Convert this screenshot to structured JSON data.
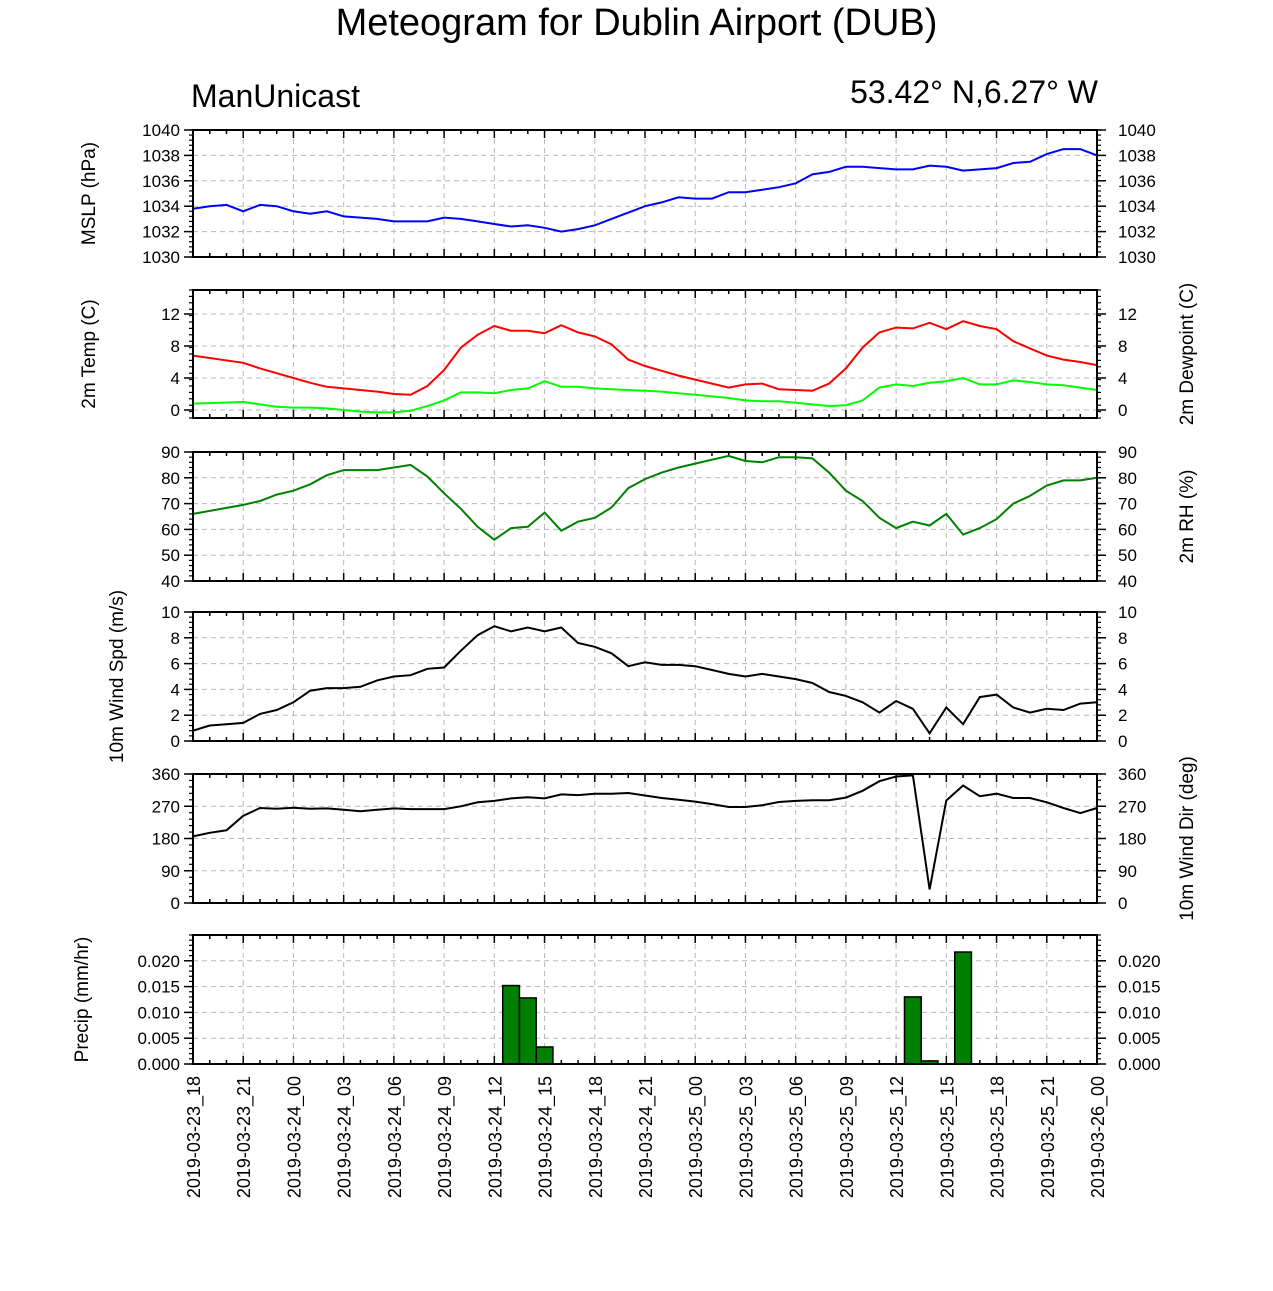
{
  "title": "Meteogram for Dublin Airport (DUB)",
  "subtitle_left": "ManUnicast",
  "subtitle_right": "53.42° N,6.27° W",
  "x_ticks": [
    "2019-03-23_18",
    "2019-03-23_21",
    "2019-03-24_00",
    "2019-03-24_03",
    "2019-03-24_06",
    "2019-03-24_09",
    "2019-03-24_12",
    "2019-03-24_15",
    "2019-03-24_18",
    "2019-03-24_21",
    "2019-03-25_00",
    "2019-03-25_03",
    "2019-03-25_06",
    "2019-03-25_09",
    "2019-03-25_12",
    "2019-03-25_15",
    "2019-03-25_18",
    "2019-03-25_21",
    "2019-03-26_00"
  ],
  "chart_data": [
    {
      "type": "line",
      "ylabel": "MSLP (hPa)",
      "ylabel_right": "",
      "ylim": [
        1030,
        1040
      ],
      "yticks": [
        1030,
        1032,
        1034,
        1036,
        1038,
        1040
      ],
      "ytick_labels": [
        "1030",
        "1032",
        "1034",
        "1036",
        "1038",
        "1040"
      ],
      "right_tick_labels": true,
      "x_hours": [
        0,
        1,
        2,
        3,
        4,
        5,
        6,
        7,
        8,
        9,
        10,
        11,
        12,
        13,
        14,
        15,
        16,
        17,
        18,
        19,
        20,
        21,
        22,
        23,
        24,
        25,
        26,
        27,
        28,
        29,
        30,
        31,
        32,
        33,
        34,
        35,
        36,
        37,
        38,
        39,
        40,
        41,
        42,
        43,
        44,
        45,
        46,
        47,
        48,
        49,
        50,
        51,
        52,
        53,
        54
      ],
      "series": [
        {
          "color": "#0000ff",
          "values": [
            1033.8,
            1034.0,
            1034.1,
            1033.6,
            1034.1,
            1034.0,
            1033.6,
            1033.4,
            1033.6,
            1033.2,
            1033.1,
            1033.0,
            1032.8,
            1032.8,
            1032.8,
            1033.1,
            1033.0,
            1032.8,
            1032.6,
            1032.4,
            1032.5,
            1032.3,
            1032.0,
            1032.2,
            1032.5,
            1033.0,
            1033.5,
            1034.0,
            1034.3,
            1034.7,
            1034.6,
            1034.6,
            1035.1,
            1035.1,
            1035.3,
            1035.5,
            1035.8,
            1036.5,
            1036.7,
            1037.1,
            1037.1,
            1037.0,
            1036.9,
            1036.9,
            1037.2,
            1037.1,
            1036.8,
            1036.9,
            1037.0,
            1037.4,
            1037.5,
            1038.1,
            1038.5,
            1038.5,
            1038.0
          ]
        }
      ]
    },
    {
      "type": "line",
      "ylabel": "2m Temp (C)",
      "ylabel_right": "2m Dewpoint (C)",
      "ylim": [
        -1,
        15
      ],
      "yticks": [
        0,
        4,
        8,
        12
      ],
      "ytick_labels": [
        "0",
        "4",
        "8",
        "12"
      ],
      "right_tick_labels": true,
      "x_hours": [
        0,
        3,
        4,
        5,
        6,
        7,
        8,
        9,
        10,
        11,
        12,
        13,
        14,
        15,
        16,
        17,
        18,
        19,
        20,
        21,
        22,
        23,
        24,
        25,
        26,
        27,
        28,
        29,
        30,
        31,
        32,
        33,
        34,
        35,
        36,
        37,
        38,
        39,
        40,
        41,
        42,
        43,
        44,
        45,
        46,
        47,
        48,
        49,
        50,
        51,
        52,
        53,
        54
      ],
      "series": [
        {
          "color": "#ff0000",
          "values": [
            6.8,
            5.9,
            5.2,
            4.6,
            4.0,
            3.4,
            2.9,
            2.7,
            2.5,
            2.3,
            2.0,
            1.9,
            3.0,
            5.0,
            7.8,
            9.4,
            10.5,
            9.9,
            9.9,
            9.6,
            10.6,
            9.7,
            9.2,
            8.2,
            6.3,
            5.5,
            4.9,
            4.3,
            3.8,
            3.3,
            2.8,
            3.2,
            3.3,
            2.6,
            2.5,
            2.4,
            3.3,
            5.2,
            7.8,
            9.7,
            10.3,
            10.2,
            10.9,
            10.1,
            11.1,
            10.5,
            10.1,
            8.6,
            7.7,
            6.8,
            6.3,
            6.0,
            5.6
          ]
        },
        {
          "color": "#00ff00",
          "values": [
            0.8,
            1.0,
            0.7,
            0.4,
            0.3,
            0.3,
            0.2,
            0.0,
            -0.2,
            -0.3,
            -0.3,
            -0.1,
            0.5,
            1.2,
            2.2,
            2.2,
            2.1,
            2.5,
            2.7,
            3.6,
            2.9,
            2.9,
            2.7,
            2.6,
            2.5,
            2.4,
            2.3,
            2.1,
            1.9,
            1.7,
            1.5,
            1.2,
            1.1,
            1.1,
            0.9,
            0.7,
            0.5,
            0.6,
            1.2,
            2.8,
            3.2,
            3.0,
            3.4,
            3.6,
            4.0,
            3.2,
            3.2,
            3.7,
            3.5,
            3.2,
            3.1,
            2.8,
            2.5
          ]
        }
      ]
    },
    {
      "type": "line",
      "ylabel": "",
      "ylabel_right": "2m RH (%)",
      "ylim": [
        40,
        90
      ],
      "yticks": [
        40,
        50,
        60,
        70,
        80,
        90
      ],
      "ytick_labels": [
        "40",
        "50",
        "60",
        "70",
        "80",
        "90"
      ],
      "right_tick_labels": true,
      "x_hours": [
        0,
        3,
        4,
        5,
        6,
        7,
        8,
        9,
        10,
        11,
        12,
        13,
        14,
        15,
        16,
        17,
        18,
        19,
        20,
        21,
        22,
        23,
        24,
        25,
        26,
        27,
        28,
        29,
        30,
        31,
        32,
        33,
        34,
        35,
        36,
        37,
        38,
        39,
        40,
        41,
        42,
        43,
        44,
        45,
        46,
        47,
        48,
        49,
        50,
        51,
        52,
        53,
        54
      ],
      "series": [
        {
          "color": "#008000",
          "values": [
            66.0,
            69.5,
            71.0,
            73.5,
            75.0,
            77.5,
            81.0,
            83.0,
            83.0,
            83.0,
            84.0,
            85.0,
            80.5,
            74.0,
            68.0,
            61.0,
            56.0,
            60.5,
            61.0,
            66.5,
            59.5,
            63.0,
            64.5,
            68.5,
            76.0,
            79.5,
            82.0,
            84.0,
            85.5,
            87.0,
            88.5,
            86.5,
            86.0,
            88.0,
            88.0,
            87.5,
            82.0,
            75.0,
            71.0,
            64.5,
            60.5,
            63.0,
            61.5,
            66.0,
            58.0,
            60.5,
            64.0,
            70.0,
            73.0,
            77.0,
            79.0,
            79.0,
            80.0
          ]
        }
      ]
    },
    {
      "type": "line",
      "ylabel": "10m Wind Spd (m/s)",
      "ylabel_right": "",
      "ylim": [
        0,
        10
      ],
      "yticks": [
        0,
        2,
        4,
        6,
        8,
        10
      ],
      "ytick_labels": [
        "0",
        "2",
        "4",
        "6",
        "8",
        "10"
      ],
      "right_tick_labels": true,
      "x_hours": [
        0,
        1,
        2,
        3,
        4,
        5,
        6,
        7,
        8,
        9,
        10,
        11,
        12,
        13,
        14,
        15,
        16,
        17,
        18,
        19,
        20,
        21,
        22,
        23,
        24,
        25,
        26,
        27,
        28,
        29,
        30,
        31,
        32,
        33,
        34,
        35,
        36,
        37,
        38,
        39,
        40,
        41,
        42,
        43,
        44,
        45,
        46,
        47,
        48,
        49,
        50,
        51,
        52,
        53,
        54
      ],
      "series": [
        {
          "color": "#000000",
          "values": [
            0.8,
            1.2,
            1.3,
            1.4,
            2.1,
            2.4,
            3.0,
            3.9,
            4.1,
            4.1,
            4.2,
            4.7,
            5.0,
            5.1,
            5.6,
            5.7,
            7.0,
            8.2,
            8.9,
            8.5,
            8.8,
            8.5,
            8.8,
            7.6,
            7.3,
            6.8,
            5.8,
            6.1,
            5.9,
            5.9,
            5.8,
            5.5,
            5.2,
            5.0,
            5.2,
            5.0,
            4.8,
            4.5,
            3.8,
            3.5,
            3.0,
            2.2,
            3.1,
            2.5,
            0.6,
            2.6,
            1.3,
            3.4,
            3.6,
            2.6,
            2.2,
            2.5,
            2.4,
            2.9,
            3.0
          ]
        }
      ]
    },
    {
      "type": "line",
      "ylabel": "",
      "ylabel_right": "10m Wind Dir (deg)",
      "ylim": [
        0,
        360
      ],
      "yticks": [
        0,
        90,
        180,
        270,
        360
      ],
      "ytick_labels": [
        "0",
        "90",
        "180",
        "270",
        "360"
      ],
      "right_tick_labels": true,
      "x_hours": [
        0,
        1,
        2,
        3,
        4,
        5,
        6,
        7,
        8,
        9,
        10,
        11,
        12,
        13,
        14,
        15,
        16,
        17,
        18,
        19,
        20,
        21,
        22,
        23,
        24,
        25,
        26,
        27,
        28,
        29,
        30,
        31,
        32,
        33,
        34,
        35,
        36,
        37,
        38,
        39,
        40,
        41,
        42,
        43,
        44,
        45,
        46,
        47,
        48,
        49,
        50,
        51,
        52,
        53,
        54
      ],
      "series": [
        {
          "color": "#000000",
          "values": [
            186,
            196,
            203,
            243,
            265,
            263,
            266,
            263,
            264,
            260,
            256,
            260,
            264,
            262,
            262,
            262,
            270,
            281,
            285,
            292,
            295,
            292,
            303,
            301,
            305,
            305,
            307,
            300,
            293,
            288,
            283,
            276,
            268,
            268,
            273,
            282,
            285,
            287,
            287,
            294,
            313,
            340,
            353,
            356,
            38,
            286,
            328,
            298,
            305,
            293,
            293,
            281,
            265,
            251,
            265
          ]
        }
      ]
    },
    {
      "type": "bar",
      "ylabel": "Precip (mm/hr)",
      "ylabel_right": "",
      "ylim": [
        0,
        0.025
      ],
      "yticks": [
        0.0,
        0.005,
        0.01,
        0.015,
        0.02
      ],
      "ytick_labels": [
        "0.000",
        "0.005",
        "0.010",
        "0.015",
        "0.020"
      ],
      "right_tick_labels": true,
      "bar_color": "#008000",
      "bars": [
        {
          "hour": 19,
          "value": 0.0152
        },
        {
          "hour": 20,
          "value": 0.0128
        },
        {
          "hour": 21,
          "value": 0.0033
        },
        {
          "hour": 43,
          "value": 0.013
        },
        {
          "hour": 44,
          "value": 0.0006
        },
        {
          "hour": 46,
          "value": 0.0217
        }
      ]
    }
  ]
}
